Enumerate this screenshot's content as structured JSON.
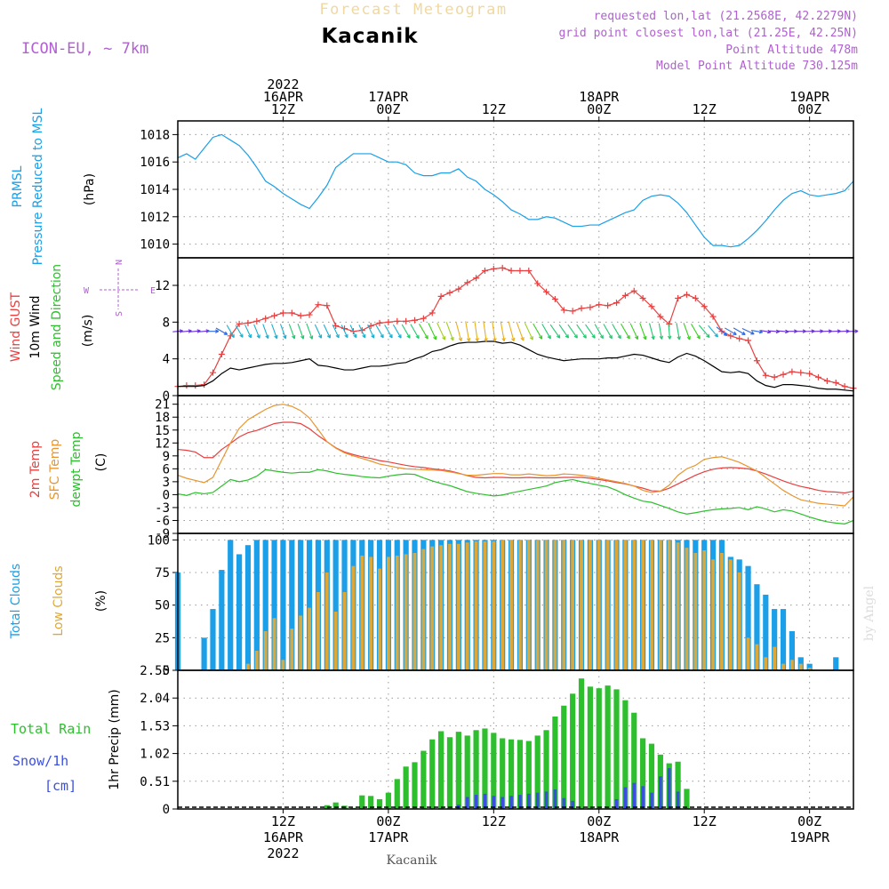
{
  "header": {
    "title": "Forecast Meteogram",
    "location": "Kacanik",
    "model": "ICON-EU, ~ 7km",
    "requested": "requested lon,lat (21.2568E, 42.2279N)",
    "grid_point": "grid point closest lon,lat (21.25E, 42.25N)",
    "point_altitude": "Point Altitude 478m",
    "model_altitude": "Model Point Altitude 730.125m",
    "footer_location": "Kacanik",
    "watermark": "by Angel"
  },
  "time_axis": {
    "top_labels": [
      {
        "h": 12,
        "lines": [
          "2022",
          "16APR",
          "12Z"
        ]
      },
      {
        "h": 24,
        "lines": [
          "17APR",
          "00Z"
        ]
      },
      {
        "h": 36,
        "lines": [
          "12Z"
        ]
      },
      {
        "h": 48,
        "lines": [
          "18APR",
          "00Z"
        ]
      },
      {
        "h": 60,
        "lines": [
          "12Z"
        ]
      },
      {
        "h": 72,
        "lines": [
          "19APR",
          "00Z"
        ]
      }
    ],
    "bottom_labels": [
      {
        "h": 12,
        "lines": [
          "12Z",
          "16APR",
          "2022"
        ]
      },
      {
        "h": 24,
        "lines": [
          "00Z",
          "17APR"
        ]
      },
      {
        "h": 36,
        "lines": [
          "12Z"
        ]
      },
      {
        "h": 48,
        "lines": [
          "00Z",
          "18APR"
        ]
      },
      {
        "h": 60,
        "lines": [
          "12Z"
        ]
      },
      {
        "h": 72,
        "lines": [
          "00Z",
          "19APR"
        ]
      }
    ],
    "range_hours": [
      0,
      77
    ],
    "grid_hours": [
      12,
      24,
      36,
      48,
      60,
      72
    ]
  },
  "chart_data": [
    {
      "type": "line",
      "panel": "pressure",
      "labels": {
        "l1": "PRMSL",
        "l2": "Pressure Reduced to MSL",
        "unit": "(hPa)"
      },
      "ylim": [
        1009,
        1019
      ],
      "yticks": [
        1010,
        1012,
        1014,
        1016,
        1018
      ],
      "series": [
        {
          "name": "PRMSL",
          "color": "#1a9fe8",
          "values": [
            1016.3,
            1016.6,
            1016.2,
            1017.0,
            1017.8,
            1018.0,
            1017.6,
            1017.2,
            1016.5,
            1015.6,
            1014.6,
            1014.2,
            1013.7,
            1013.3,
            1012.9,
            1012.6,
            1013.4,
            1014.3,
            1015.6,
            1016.1,
            1016.6,
            1016.6,
            1016.6,
            1016.3,
            1016.0,
            1016.0,
            1015.8,
            1015.2,
            1015.0,
            1015.0,
            1015.2,
            1015.2,
            1015.5,
            1014.9,
            1014.6,
            1014.0,
            1013.6,
            1013.1,
            1012.5,
            1012.2,
            1011.8,
            1011.8,
            1012.0,
            1011.9,
            1011.6,
            1011.3,
            1011.3,
            1011.4,
            1011.4,
            1011.7,
            1012.0,
            1012.3,
            1012.5,
            1013.2,
            1013.5,
            1013.6,
            1013.5,
            1013.0,
            1012.3,
            1011.4,
            1010.5,
            1009.9,
            1009.9,
            1009.8,
            1009.9,
            1010.4,
            1011.0,
            1011.7,
            1012.5,
            1013.2,
            1013.7,
            1013.9,
            1013.6,
            1013.5,
            1013.6,
            1013.7,
            1013.9,
            1014.6
          ]
        }
      ]
    },
    {
      "type": "line",
      "panel": "wind",
      "labels": {
        "gust": "Wind GUST",
        "wind": "10m Wind",
        "dir": "Speed and Direction",
        "unit": "(m/s)"
      },
      "compass": {
        "n": "N",
        "s": "S",
        "w": "W",
        "e": "E"
      },
      "ylim": [
        0,
        15
      ],
      "yticks": [
        0,
        4,
        8,
        12
      ],
      "series": [
        {
          "name": "Wind GUST",
          "color": "#e84040",
          "values": [
            1.0,
            1.1,
            1.1,
            1.2,
            2.5,
            4.5,
            6.5,
            7.8,
            7.9,
            8.1,
            8.4,
            8.7,
            9.0,
            9.0,
            8.7,
            8.8,
            9.9,
            9.8,
            7.6,
            7.3,
            7.0,
            7.1,
            7.6,
            7.9,
            8.0,
            8.1,
            8.1,
            8.2,
            8.4,
            9.0,
            10.8,
            11.2,
            11.6,
            12.3,
            12.8,
            13.6,
            13.8,
            13.9,
            13.6,
            13.6,
            13.6,
            12.2,
            11.3,
            10.5,
            9.3,
            9.2,
            9.5,
            9.6,
            9.9,
            9.8,
            10.1,
            10.9,
            11.4,
            10.6,
            9.7,
            8.6,
            7.8,
            10.6,
            11.0,
            10.6,
            9.7,
            8.6,
            7.0,
            6.5,
            6.2,
            6.0,
            3.8,
            2.2,
            2.0,
            2.3,
            2.6,
            2.5,
            2.4,
            2.0,
            1.6,
            1.4,
            1.0,
            0.8
          ]
        },
        {
          "name": "10m Wind",
          "color": "#000000",
          "values": [
            1.0,
            1.0,
            1.0,
            1.1,
            1.6,
            2.4,
            3.0,
            2.8,
            3.0,
            3.2,
            3.4,
            3.5,
            3.5,
            3.6,
            3.8,
            4.0,
            3.3,
            3.2,
            3.0,
            2.8,
            2.8,
            3.0,
            3.2,
            3.2,
            3.3,
            3.5,
            3.6,
            4.0,
            4.3,
            4.8,
            5.0,
            5.4,
            5.7,
            5.8,
            5.8,
            5.9,
            5.9,
            5.7,
            5.8,
            5.5,
            5.0,
            4.5,
            4.2,
            4.0,
            3.8,
            3.9,
            4.0,
            4.0,
            4.0,
            4.1,
            4.1,
            4.3,
            4.5,
            4.4,
            4.1,
            3.8,
            3.6,
            4.2,
            4.6,
            4.3,
            3.8,
            3.2,
            2.6,
            2.5,
            2.6,
            2.4,
            1.6,
            1.1,
            0.9,
            1.2,
            1.2,
            1.1,
            1.0,
            0.8,
            0.7,
            0.7,
            0.6,
            0.5
          ]
        },
        {
          "name": "Wind Direction (deg)",
          "values": [
            265,
            265,
            265,
            265,
            270,
            300,
            330,
            330,
            335,
            338,
            340,
            340,
            340,
            340,
            340,
            340,
            335,
            335,
            335,
            335,
            335,
            335,
            335,
            330,
            330,
            330,
            330,
            330,
            330,
            335,
            335,
            340,
            345,
            350,
            352,
            352,
            352,
            350,
            345,
            340,
            335,
            330,
            330,
            325,
            325,
            325,
            325,
            325,
            330,
            330,
            330,
            330,
            335,
            340,
            345,
            350,
            355,
            350,
            340,
            330,
            320,
            320,
            310,
            300,
            300,
            295,
            280,
            280,
            275,
            275,
            270,
            270,
            268,
            268,
            268,
            268,
            268,
            268
          ]
        }
      ]
    },
    {
      "type": "line",
      "panel": "temperature",
      "labels": {
        "t2m": "2m Temp",
        "sfc": "SFC Temp",
        "dew": "dewpt Temp",
        "unit": "(C)"
      },
      "ylim": [
        -9,
        23
      ],
      "yticks": [
        -9,
        -6,
        -3,
        0,
        3,
        6,
        9,
        12,
        15,
        18,
        21
      ],
      "series": [
        {
          "name": "2m Temp",
          "color": "#e84040",
          "values": [
            10.5,
            10.3,
            9.9,
            8.6,
            8.6,
            10.5,
            11.9,
            13.4,
            14.4,
            14.9,
            15.7,
            16.5,
            16.8,
            16.8,
            16.5,
            15.3,
            13.7,
            12.3,
            10.9,
            9.9,
            9.3,
            8.8,
            8.4,
            7.9,
            7.6,
            7.2,
            6.8,
            6.5,
            6.3,
            6.0,
            5.8,
            5.5,
            5.0,
            4.4,
            4.0,
            3.9,
            4.0,
            4.0,
            3.9,
            3.9,
            4.0,
            3.9,
            3.9,
            3.9,
            4.0,
            4.0,
            4.0,
            3.8,
            3.5,
            3.2,
            2.8,
            2.5,
            2.0,
            1.5,
            0.9,
            0.8,
            1.5,
            2.5,
            3.5,
            4.5,
            5.3,
            5.9,
            6.2,
            6.3,
            6.2,
            6.0,
            5.5,
            4.8,
            4.0,
            3.2,
            2.5,
            1.9,
            1.5,
            1.0,
            0.7,
            0.6,
            0.4,
            0.8
          ]
        },
        {
          "name": "SFC Temp",
          "color": "#e89630",
          "values": [
            4.5,
            3.8,
            3.3,
            2.8,
            4.0,
            8.0,
            12.0,
            15.4,
            17.4,
            18.6,
            19.8,
            20.7,
            21.0,
            20.5,
            19.5,
            17.8,
            15.1,
            12.3,
            10.8,
            9.7,
            9.0,
            8.4,
            7.8,
            7.1,
            6.7,
            6.3,
            6.0,
            5.9,
            5.8,
            5.7,
            5.6,
            5.3,
            4.9,
            4.5,
            4.5,
            4.7,
            4.9,
            4.9,
            4.6,
            4.6,
            4.8,
            4.6,
            4.4,
            4.5,
            4.8,
            4.7,
            4.5,
            4.2,
            3.8,
            3.4,
            3.0,
            2.6,
            2.0,
            1.0,
            0.5,
            0.8,
            2.2,
            4.5,
            6.0,
            6.8,
            8.2,
            8.6,
            8.8,
            8.2,
            7.5,
            6.5,
            5.5,
            4.0,
            2.5,
            1.0,
            -0.2,
            -1.2,
            -1.6,
            -2.0,
            -2.2,
            -2.4,
            -2.6,
            -0.5
          ]
        },
        {
          "name": "dewpt Temp",
          "color": "#2dbf2d",
          "values": [
            0.2,
            -0.2,
            0.5,
            0.2,
            0.5,
            2.0,
            3.5,
            3.0,
            3.4,
            4.3,
            5.8,
            5.5,
            5.2,
            5.0,
            5.2,
            5.2,
            5.8,
            5.5,
            5.0,
            4.7,
            4.5,
            4.2,
            4.0,
            3.9,
            4.3,
            4.6,
            4.8,
            4.7,
            3.9,
            3.2,
            2.6,
            2.1,
            1.4,
            0.7,
            0.3,
            0.0,
            -0.3,
            -0.1,
            0.4,
            0.8,
            1.2,
            1.6,
            2.0,
            2.8,
            3.2,
            3.5,
            3.0,
            2.6,
            2.2,
            1.8,
            1.0,
            0.0,
            -0.8,
            -1.5,
            -1.8,
            -2.5,
            -3.2,
            -4.0,
            -4.5,
            -4.2,
            -3.8,
            -3.5,
            -3.3,
            -3.2,
            -3.0,
            -3.5,
            -2.8,
            -3.3,
            -4.0,
            -3.5,
            -3.8,
            -4.5,
            -5.2,
            -5.8,
            -6.3,
            -6.6,
            -6.8,
            -6.0
          ]
        }
      ]
    },
    {
      "type": "bar",
      "panel": "clouds",
      "labels": {
        "total": "Total Clouds",
        "low": "Low Clouds",
        "unit": "(%)"
      },
      "ylim": [
        0,
        105
      ],
      "yticks": [
        0,
        25,
        50,
        75,
        100
      ],
      "series": [
        {
          "name": "Total Clouds",
          "color": "#1a9fe8",
          "values": [
            75,
            0,
            0,
            25,
            47,
            77,
            100,
            89,
            96,
            100,
            100,
            100,
            100,
            100,
            100,
            100,
            100,
            100,
            100,
            100,
            100,
            100,
            100,
            100,
            100,
            100,
            100,
            100,
            100,
            100,
            100,
            100,
            100,
            100,
            100,
            100,
            100,
            100,
            100,
            100,
            100,
            100,
            100,
            100,
            100,
            100,
            100,
            100,
            100,
            100,
            100,
            100,
            100,
            100,
            100,
            100,
            100,
            100,
            100,
            100,
            100,
            100,
            100,
            87,
            85,
            80,
            66,
            58,
            47,
            47,
            30,
            10,
            5,
            0,
            0,
            10,
            0,
            0
          ]
        },
        {
          "name": "Low Clouds",
          "color": "#dda83a",
          "values": [
            0,
            0,
            0,
            0,
            0,
            0,
            0,
            0,
            5,
            15,
            30,
            40,
            8,
            32,
            42,
            48,
            60,
            75,
            45,
            60,
            80,
            88,
            87,
            78,
            87,
            88,
            89,
            90,
            93,
            95,
            96,
            97,
            97,
            98,
            99,
            99,
            99,
            100,
            100,
            100,
            100,
            100,
            100,
            100,
            100,
            100,
            100,
            100,
            100,
            100,
            100,
            100,
            100,
            100,
            100,
            100,
            100,
            98,
            94,
            90,
            92,
            85,
            90,
            85,
            75,
            25,
            20,
            10,
            18,
            5,
            8,
            5,
            2,
            0,
            0,
            0,
            0,
            0
          ]
        }
      ]
    },
    {
      "type": "bar",
      "panel": "precipitation",
      "labels": {
        "rain": "Total Rain",
        "snow": "Snow/1h",
        "snow_unit": "[cm]",
        "unit": "1hr Precip (mm)"
      },
      "ylim": [
        0,
        2.55
      ],
      "yticks": [
        0,
        0.51,
        1.02,
        1.53,
        2.04,
        2.55
      ],
      "ytick_labels": [
        "0",
        "0.51",
        "1.02",
        "1.53",
        "2.04",
        "2.55"
      ],
      "series": [
        {
          "name": "Total Rain",
          "color": "#2dbf2d",
          "values": [
            0,
            0,
            0,
            0,
            0,
            0,
            0,
            0,
            0,
            0,
            0,
            0,
            0,
            0,
            0,
            0,
            0,
            0.07,
            0.12,
            0.06,
            0.02,
            0.25,
            0.24,
            0.18,
            0.3,
            0.55,
            0.78,
            0.86,
            1.07,
            1.28,
            1.43,
            1.32,
            1.42,
            1.35,
            1.45,
            1.48,
            1.4,
            1.3,
            1.28,
            1.27,
            1.25,
            1.35,
            1.45,
            1.7,
            1.9,
            2.12,
            2.4,
            2.25,
            2.22,
            2.27,
            2.2,
            2.0,
            1.77,
            1.3,
            1.2,
            1.0,
            0.84,
            0.87,
            0.37,
            0,
            0,
            0,
            0,
            0,
            0,
            0,
            0,
            0,
            0,
            0,
            0,
            0,
            0,
            0,
            0,
            0,
            0,
            0
          ]
        },
        {
          "name": "Snow/1h",
          "color": "#3a4fe0",
          "values": [
            0,
            0,
            0,
            0,
            0,
            0,
            0,
            0,
            0,
            0,
            0,
            0,
            0,
            0,
            0,
            0,
            0,
            0,
            0,
            0,
            0,
            0,
            0,
            0,
            0,
            0,
            0,
            0,
            0,
            0,
            0,
            0,
            0.08,
            0.22,
            0.26,
            0.28,
            0.24,
            0.22,
            0.24,
            0.26,
            0.28,
            0.3,
            0.32,
            0.36,
            0.2,
            0.15,
            0,
            0,
            0,
            0,
            0.18,
            0.4,
            0.48,
            0.42,
            0.3,
            0.6,
            0.75,
            0.32,
            0,
            0,
            0,
            0,
            0,
            0,
            0,
            0,
            0,
            0,
            0,
            0,
            0,
            0,
            0,
            0,
            0,
            0,
            0,
            0
          ]
        }
      ]
    }
  ]
}
